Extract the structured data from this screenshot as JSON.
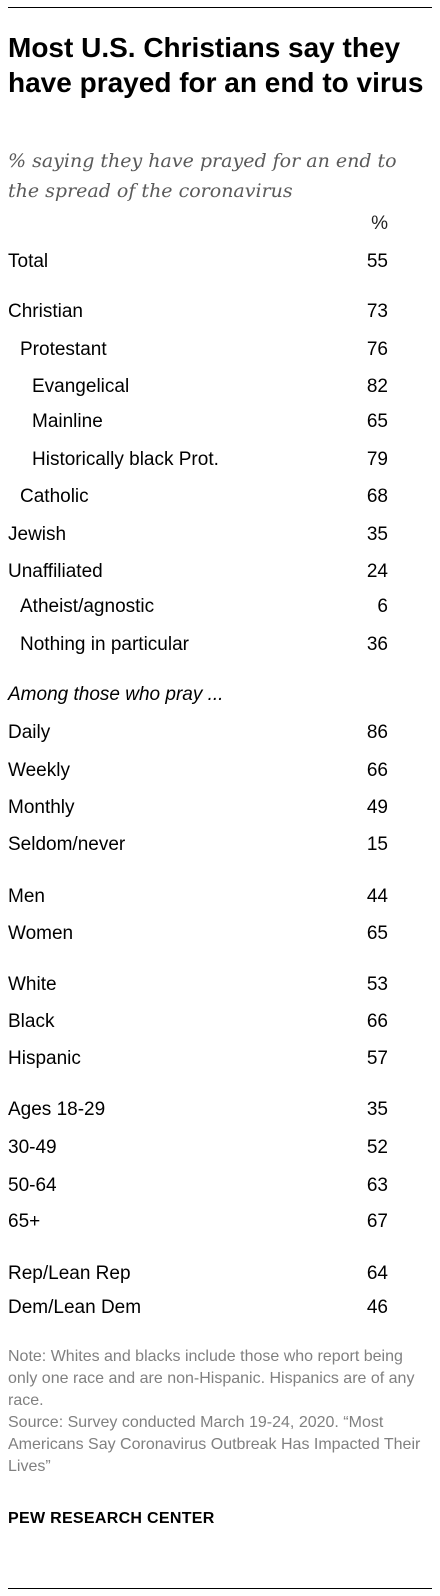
{
  "title": "Most U.S. Christians say they have prayed for an end to virus",
  "subtitle": "% saying they have prayed for an end to the spread of the coronavirus",
  "unit_header": "%",
  "section_label": "Among those who pray ...",
  "chart_data": {
    "type": "table",
    "unit": "%",
    "rows": [
      {
        "label": "Total",
        "value": 55
      },
      {
        "label": "Christian",
        "value": 73
      },
      {
        "label": "Protestant",
        "value": 76
      },
      {
        "label": "Evangelical",
        "value": 82
      },
      {
        "label": "Mainline",
        "value": 65
      },
      {
        "label": "Historically black Prot.",
        "value": 79
      },
      {
        "label": "Catholic",
        "value": 68
      },
      {
        "label": "Jewish",
        "value": 35
      },
      {
        "label": "Unaffiliated",
        "value": 24
      },
      {
        "label": "Atheist/agnostic",
        "value": 6
      },
      {
        "label": "Nothing in particular",
        "value": 36
      },
      {
        "label": "Daily",
        "value": 86
      },
      {
        "label": "Weekly",
        "value": 66
      },
      {
        "label": "Monthly",
        "value": 49
      },
      {
        "label": "Seldom/never",
        "value": 15
      },
      {
        "label": "Men",
        "value": 44
      },
      {
        "label": "Women",
        "value": 65
      },
      {
        "label": "White",
        "value": 53
      },
      {
        "label": "Black",
        "value": 66
      },
      {
        "label": "Hispanic",
        "value": 57
      },
      {
        "label": "Ages 18-29",
        "value": 35
      },
      {
        "label": "30-49",
        "value": 52
      },
      {
        "label": "50-64",
        "value": 63
      },
      {
        "label": "65+",
        "value": 67
      },
      {
        "label": "Rep/Lean Rep",
        "value": 64
      },
      {
        "label": "Dem/Lean Dem",
        "value": 46
      }
    ]
  },
  "note": "Note:  Whites and blacks include those who report being only one race and are non-Hispanic. Hispanics are of any race.",
  "source": "Source: Survey conducted March 19-24, 2020. “Most Americans Say Coronavirus Outbreak Has Impacted Their Lives”",
  "brand": "PEW RESEARCH CENTER"
}
